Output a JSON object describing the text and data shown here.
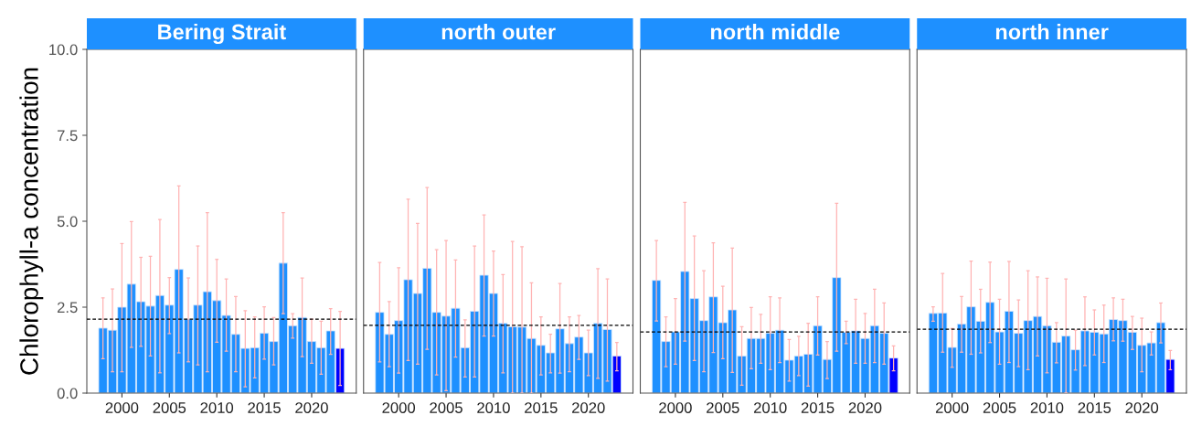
{
  "chart_data": [
    {
      "type": "bar",
      "title": "Bering Strait",
      "ylabel": "Chlorophyll-a concentration",
      "x": [
        1998,
        1999,
        2000,
        2001,
        2002,
        2003,
        2004,
        2005,
        2006,
        2007,
        2008,
        2009,
        2010,
        2011,
        2012,
        2013,
        2014,
        2015,
        2016,
        2017,
        2018,
        2019,
        2020,
        2021,
        2022,
        2023
      ],
      "values": [
        1.89,
        1.83,
        2.5,
        3.17,
        2.66,
        2.53,
        2.84,
        2.56,
        3.6,
        2.15,
        2.56,
        2.95,
        2.69,
        2.26,
        1.71,
        1.3,
        1.32,
        1.74,
        1.5,
        3.78,
        1.96,
        2.2,
        1.5,
        1.32,
        1.81,
        1.3
      ],
      "errors": [
        [
          1.0,
          2.77
        ],
        [
          0.62,
          3.03
        ],
        [
          0.62,
          4.35
        ],
        [
          1.33,
          4.99
        ],
        [
          1.36,
          3.95
        ],
        [
          1.08,
          3.98
        ],
        [
          0.59,
          5.05
        ],
        [
          1.73,
          3.36
        ],
        [
          1.17,
          6.03
        ],
        [
          0.91,
          3.35
        ],
        [
          0.82,
          4.28
        ],
        [
          0.62,
          5.25
        ],
        [
          1.48,
          3.89
        ],
        [
          1.22,
          3.32
        ],
        [
          0.62,
          2.81
        ],
        [
          0.18,
          2.4
        ],
        [
          0.44,
          2.22
        ],
        [
          0.99,
          2.51
        ],
        [
          0.82,
          2.2
        ],
        [
          2.31,
          5.25
        ],
        [
          1.6,
          2.31
        ],
        [
          1.06,
          3.35
        ],
        [
          0.87,
          2.15
        ],
        [
          0.55,
          2.09
        ],
        [
          1.13,
          2.46
        ],
        [
          0.22,
          2.38
        ]
      ],
      "colors": [
        "#1e90ff",
        "#1e90ff",
        "#1e90ff",
        "#1e90ff",
        "#1e90ff",
        "#1e90ff",
        "#1e90ff",
        "#1e90ff",
        "#1e90ff",
        "#1e90ff",
        "#1e90ff",
        "#1e90ff",
        "#1e90ff",
        "#1e90ff",
        "#1e90ff",
        "#1e90ff",
        "#1e90ff",
        "#1e90ff",
        "#1e90ff",
        "#1e90ff",
        "#1e90ff",
        "#1e90ff",
        "#1e90ff",
        "#1e90ff",
        "#1e90ff",
        "#0000ff"
      ],
      "ref_lines": [
        {
          "axis": "y",
          "value": 2.15,
          "line_style": "dashed",
          "color": "#000000"
        }
      ],
      "xlim": [
        1996.3,
        2024.7
      ],
      "xticks": [
        2000,
        2005,
        2010,
        2015,
        2020
      ],
      "ylim": [
        0,
        10
      ],
      "yticks": [
        {
          "value": 0,
          "label": "0.0"
        },
        2.5,
        {
          "value": 5,
          "label": "5.0"
        },
        7.5,
        {
          "value": 10,
          "label": "10.0"
        }
      ]
    },
    {
      "type": "bar",
      "title": "north outer",
      "x": [
        1998,
        1999,
        2000,
        2001,
        2002,
        2003,
        2004,
        2005,
        2006,
        2007,
        2008,
        2009,
        2010,
        2011,
        2012,
        2013,
        2014,
        2015,
        2016,
        2017,
        2018,
        2019,
        2020,
        2021,
        2022,
        2023
      ],
      "values": [
        2.35,
        1.71,
        2.11,
        3.3,
        2.9,
        3.63,
        2.35,
        2.24,
        2.47,
        1.32,
        2.38,
        3.43,
        2.9,
        2.03,
        1.93,
        1.92,
        1.59,
        1.39,
        1.17,
        1.87,
        1.44,
        1.63,
        1.17,
        2.03,
        1.85,
        1.08
      ],
      "errors": [
        [
          0.91,
          3.8
        ],
        [
          0.77,
          2.66
        ],
        [
          0.58,
          3.65
        ],
        [
          0.95,
          5.64
        ],
        [
          0.84,
          4.94
        ],
        [
          1.27,
          5.98
        ],
        [
          0.53,
          4.17
        ],
        [
          0.07,
          4.44
        ],
        [
          1.05,
          3.87
        ],
        [
          0.47,
          2.13
        ],
        [
          0.47,
          4.28
        ],
        [
          1.66,
          5.18
        ],
        [
          1.66,
          4.13
        ],
        [
          0.59,
          3.45
        ],
        [
          0.0,
          4.41
        ],
        [
          0.0,
          4.26
        ],
        [
          0.0,
          3.21
        ],
        [
          0.53,
          2.22
        ],
        [
          0.59,
          1.71
        ],
        [
          0.58,
          3.19
        ],
        [
          0.62,
          2.22
        ],
        [
          0.98,
          2.26
        ],
        [
          0.51,
          1.83
        ],
        [
          0.43,
          3.62
        ],
        [
          0.35,
          3.32
        ],
        [
          0.65,
          1.47
        ]
      ],
      "colors": [
        "#1e90ff",
        "#1e90ff",
        "#1e90ff",
        "#1e90ff",
        "#1e90ff",
        "#1e90ff",
        "#1e90ff",
        "#1e90ff",
        "#1e90ff",
        "#1e90ff",
        "#1e90ff",
        "#1e90ff",
        "#1e90ff",
        "#1e90ff",
        "#1e90ff",
        "#1e90ff",
        "#1e90ff",
        "#1e90ff",
        "#1e90ff",
        "#1e90ff",
        "#1e90ff",
        "#1e90ff",
        "#1e90ff",
        "#1e90ff",
        "#1e90ff",
        "#0000ff"
      ],
      "ref_lines": [
        {
          "axis": "y",
          "value": 1.97,
          "line_style": "dashed",
          "color": "#000000"
        }
      ],
      "xlim": [
        1996.3,
        2024.7
      ],
      "xticks": [
        2000,
        2005,
        2010,
        2015,
        2020
      ],
      "ylim": [
        0,
        10
      ],
      "tick_labels": "x"
    },
    {
      "type": "bar",
      "title": "north middle",
      "x": [
        1998,
        1999,
        2000,
        2001,
        2002,
        2003,
        2004,
        2005,
        2006,
        2007,
        2008,
        2009,
        2010,
        2011,
        2012,
        2013,
        2014,
        2015,
        2016,
        2017,
        2018,
        2019,
        2020,
        2021,
        2022,
        2023
      ],
      "values": [
        3.28,
        1.5,
        1.78,
        3.54,
        2.75,
        2.11,
        2.8,
        2.05,
        2.42,
        1.08,
        1.59,
        1.59,
        1.74,
        1.83,
        0.96,
        1.08,
        1.13,
        1.96,
        0.98,
        3.36,
        1.77,
        1.81,
        1.59,
        1.96,
        1.74,
        1.02
      ],
      "errors": [
        [
          2.1,
          4.44
        ],
        [
          0.77,
          2.22
        ],
        [
          0.84,
          2.75
        ],
        [
          1.51,
          5.55
        ],
        [
          0.95,
          4.57
        ],
        [
          0.62,
          3.56
        ],
        [
          1.18,
          4.37
        ],
        [
          1.0,
          3.11
        ],
        [
          0.6,
          4.22
        ],
        [
          0.23,
          1.93
        ],
        [
          0.71,
          2.49
        ],
        [
          0.87,
          2.29
        ],
        [
          0.68,
          2.8
        ],
        [
          0.89,
          2.77
        ],
        [
          0.35,
          1.56
        ],
        [
          0.51,
          1.65
        ],
        [
          0.2,
          2.03
        ],
        [
          1.11,
          2.8
        ],
        [
          0.42,
          1.5
        ],
        [
          1.22,
          5.52
        ],
        [
          1.44,
          2.09
        ],
        [
          0.87,
          2.73
        ],
        [
          0.87,
          2.32
        ],
        [
          0.89,
          3.02
        ],
        [
          0.84,
          2.62
        ],
        [
          0.65,
          1.37
        ]
      ],
      "colors": [
        "#1e90ff",
        "#1e90ff",
        "#1e90ff",
        "#1e90ff",
        "#1e90ff",
        "#1e90ff",
        "#1e90ff",
        "#1e90ff",
        "#1e90ff",
        "#1e90ff",
        "#1e90ff",
        "#1e90ff",
        "#1e90ff",
        "#1e90ff",
        "#1e90ff",
        "#1e90ff",
        "#1e90ff",
        "#1e90ff",
        "#1e90ff",
        "#1e90ff",
        "#1e90ff",
        "#1e90ff",
        "#1e90ff",
        "#1e90ff",
        "#1e90ff",
        "#0000ff"
      ],
      "ref_lines": [
        {
          "axis": "y",
          "value": 1.78,
          "line_style": "dashed",
          "color": "#000000"
        }
      ],
      "xlim": [
        1996.3,
        2024.7
      ],
      "xticks": [
        2000,
        2005,
        2010,
        2015,
        2020
      ],
      "ylim": [
        0,
        10
      ],
      "tick_labels": "x"
    },
    {
      "type": "bar",
      "title": "north inner",
      "x": [
        1998,
        1999,
        2000,
        2001,
        2002,
        2003,
        2004,
        2005,
        2006,
        2007,
        2008,
        2009,
        2010,
        2011,
        2012,
        2013,
        2014,
        2015,
        2016,
        2017,
        2018,
        2019,
        2020,
        2021,
        2022,
        2023
      ],
      "values": [
        2.32,
        2.33,
        1.33,
        2.01,
        2.51,
        2.09,
        2.64,
        1.78,
        2.38,
        1.74,
        2.11,
        2.23,
        1.96,
        1.48,
        1.66,
        1.26,
        1.81,
        1.77,
        1.72,
        2.14,
        2.11,
        1.77,
        1.39,
        1.46,
        2.05,
        0.98
      ],
      "errors": [
        [
          2.09,
          2.51
        ],
        [
          1.19,
          3.48
        ],
        [
          0.75,
          1.88
        ],
        [
          1.19,
          2.81
        ],
        [
          1.13,
          3.84
        ],
        [
          1.17,
          3.02
        ],
        [
          1.47,
          3.81
        ],
        [
          0.84,
          2.73
        ],
        [
          0.89,
          3.83
        ],
        [
          0.77,
          2.71
        ],
        [
          0.68,
          3.56
        ],
        [
          1.08,
          3.38
        ],
        [
          0.59,
          3.34
        ],
        [
          0.88,
          2.05
        ],
        [
          0.0,
          3.32
        ],
        [
          0.67,
          1.83
        ],
        [
          0.8,
          2.8
        ],
        [
          1.11,
          2.42
        ],
        [
          0.89,
          2.56
        ],
        [
          1.52,
          2.77
        ],
        [
          1.51,
          2.73
        ],
        [
          1.27,
          2.23
        ],
        [
          0.62,
          2.18
        ],
        [
          1.11,
          1.78
        ],
        [
          1.46,
          2.62
        ],
        [
          0.68,
          1.24
        ]
      ],
      "colors": [
        "#1e90ff",
        "#1e90ff",
        "#1e90ff",
        "#1e90ff",
        "#1e90ff",
        "#1e90ff",
        "#1e90ff",
        "#1e90ff",
        "#1e90ff",
        "#1e90ff",
        "#1e90ff",
        "#1e90ff",
        "#1e90ff",
        "#1e90ff",
        "#1e90ff",
        "#1e90ff",
        "#1e90ff",
        "#1e90ff",
        "#1e90ff",
        "#1e90ff",
        "#1e90ff",
        "#1e90ff",
        "#1e90ff",
        "#1e90ff",
        "#1e90ff",
        "#0000ff"
      ],
      "ref_lines": [
        {
          "axis": "y",
          "value": 1.86,
          "line_style": "dashed",
          "color": "#000000"
        }
      ],
      "xlim": [
        1996.3,
        2024.7
      ],
      "xticks": [
        2000,
        2005,
        2010,
        2015,
        2020
      ],
      "ylim": [
        0,
        10
      ],
      "tick_labels": "x"
    }
  ]
}
